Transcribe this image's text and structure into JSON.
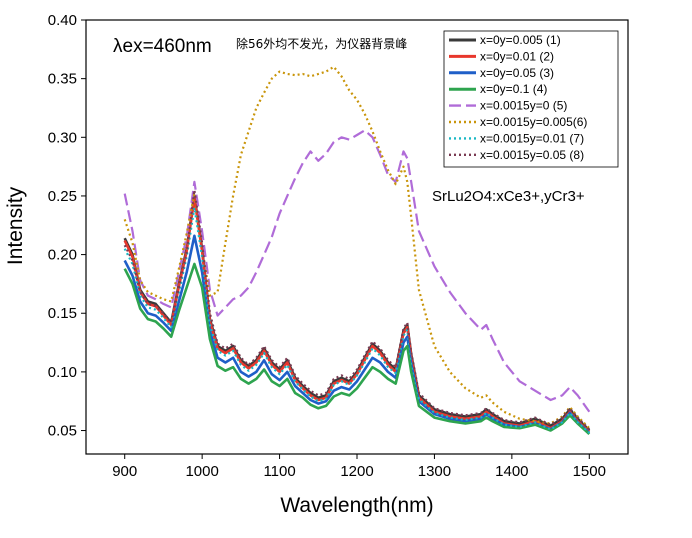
{
  "chart_data": {
    "type": "line",
    "xlabel": "Wavelength(nm)",
    "ylabel": "Intensity",
    "xlim": [
      850,
      1550
    ],
    "ylim": [
      0.03,
      0.4
    ],
    "xticks": [
      900,
      1000,
      1100,
      1200,
      1300,
      1400,
      1500
    ],
    "yticks": [
      0.05,
      0.1,
      0.15,
      0.2,
      0.25,
      0.3,
      0.35,
      0.4
    ],
    "ytick_labels": [
      "0.05",
      "0.10",
      "0.15",
      "0.20",
      "0.25",
      "0.30",
      "0.35",
      "0.40"
    ],
    "legend_position": "top-right",
    "annotations": {
      "excitation": "λex=460nm",
      "note": "除56外均不发光，为仪器背景峰",
      "sample": "SrLu2O4:xCe3+,yCr3+"
    },
    "x": [
      900,
      910,
      920,
      930,
      940,
      950,
      960,
      970,
      980,
      990,
      1000,
      1010,
      1020,
      1030,
      1040,
      1050,
      1060,
      1070,
      1080,
      1090,
      1100,
      1110,
      1120,
      1130,
      1140,
      1150,
      1160,
      1170,
      1180,
      1190,
      1200,
      1210,
      1220,
      1230,
      1240,
      1250,
      1260,
      1265,
      1270,
      1280,
      1300,
      1320,
      1340,
      1360,
      1367,
      1375,
      1390,
      1410,
      1430,
      1450,
      1465,
      1475,
      1485,
      1500
    ],
    "series": [
      {
        "name": "x=0y=0.005 (1)",
        "color": "#3a3a3a",
        "dash": "solid",
        "values": [
          0.214,
          0.2,
          0.17,
          0.16,
          0.158,
          0.15,
          0.142,
          0.175,
          0.205,
          0.25,
          0.205,
          0.145,
          0.122,
          0.118,
          0.122,
          0.11,
          0.105,
          0.11,
          0.12,
          0.108,
          0.102,
          0.11,
          0.095,
          0.088,
          0.082,
          0.078,
          0.08,
          0.092,
          0.095,
          0.092,
          0.1,
          0.112,
          0.124,
          0.118,
          0.108,
          0.102,
          0.135,
          0.14,
          0.115,
          0.08,
          0.068,
          0.064,
          0.062,
          0.064,
          0.068,
          0.064,
          0.058,
          0.056,
          0.06,
          0.054,
          0.06,
          0.068,
          0.06,
          0.05
        ]
      },
      {
        "name": "x=0y=0.01  (2)",
        "color": "#e8372c",
        "dash": "solid",
        "values": [
          0.212,
          0.198,
          0.168,
          0.158,
          0.156,
          0.148,
          0.14,
          0.173,
          0.203,
          0.248,
          0.203,
          0.143,
          0.12,
          0.116,
          0.12,
          0.108,
          0.103,
          0.108,
          0.118,
          0.106,
          0.1,
          0.108,
          0.093,
          0.086,
          0.08,
          0.076,
          0.078,
          0.09,
          0.093,
          0.09,
          0.098,
          0.11,
          0.122,
          0.116,
          0.106,
          0.1,
          0.133,
          0.138,
          0.113,
          0.078,
          0.066,
          0.062,
          0.06,
          0.062,
          0.066,
          0.062,
          0.056,
          0.054,
          0.058,
          0.052,
          0.058,
          0.066,
          0.058,
          0.049
        ]
      },
      {
        "name": "x=0y=0.05  (3)",
        "color": "#1f5fc8",
        "dash": "solid",
        "values": [
          0.195,
          0.182,
          0.16,
          0.15,
          0.148,
          0.142,
          0.135,
          0.16,
          0.185,
          0.216,
          0.185,
          0.135,
          0.112,
          0.108,
          0.112,
          0.1,
          0.096,
          0.1,
          0.11,
          0.098,
          0.093,
          0.1,
          0.088,
          0.082,
          0.076,
          0.073,
          0.075,
          0.084,
          0.087,
          0.085,
          0.092,
          0.102,
          0.112,
          0.108,
          0.1,
          0.095,
          0.125,
          0.13,
          0.107,
          0.075,
          0.064,
          0.06,
          0.058,
          0.06,
          0.064,
          0.06,
          0.055,
          0.053,
          0.056,
          0.051,
          0.057,
          0.065,
          0.057,
          0.048
        ]
      },
      {
        "name": "x=0y=0.1  (4)",
        "color": "#2ea44f",
        "dash": "solid",
        "values": [
          0.188,
          0.175,
          0.154,
          0.145,
          0.143,
          0.137,
          0.13,
          0.152,
          0.172,
          0.192,
          0.172,
          0.128,
          0.105,
          0.101,
          0.104,
          0.094,
          0.09,
          0.094,
          0.102,
          0.092,
          0.088,
          0.094,
          0.082,
          0.078,
          0.072,
          0.069,
          0.071,
          0.079,
          0.082,
          0.08,
          0.086,
          0.095,
          0.104,
          0.1,
          0.094,
          0.09,
          0.118,
          0.122,
          0.1,
          0.071,
          0.061,
          0.058,
          0.056,
          0.058,
          0.061,
          0.058,
          0.053,
          0.052,
          0.055,
          0.05,
          0.056,
          0.063,
          0.056,
          0.047
        ]
      },
      {
        "name": "x=0.0015y=0      (5)",
        "color": "#b06cd8",
        "dash": "12,5",
        "values": [
          0.252,
          0.22,
          0.178,
          0.165,
          0.162,
          0.158,
          0.155,
          0.185,
          0.215,
          0.262,
          0.22,
          0.17,
          0.148,
          0.155,
          0.162,
          0.165,
          0.172,
          0.185,
          0.2,
          0.215,
          0.235,
          0.25,
          0.265,
          0.278,
          0.288,
          0.28,
          0.286,
          0.296,
          0.3,
          0.298,
          0.302,
          0.306,
          0.3,
          0.285,
          0.268,
          0.262,
          0.288,
          0.282,
          0.262,
          0.22,
          0.19,
          0.168,
          0.15,
          0.136,
          0.14,
          0.128,
          0.108,
          0.092,
          0.084,
          0.076,
          0.08,
          0.087,
          0.08,
          0.066
        ]
      },
      {
        "name": "x=0.0015y=0.005(6)",
        "color": "#c9950a",
        "dash": "2,3",
        "values": [
          0.23,
          0.21,
          0.178,
          0.168,
          0.165,
          0.162,
          0.16,
          0.188,
          0.218,
          0.252,
          0.205,
          0.165,
          0.168,
          0.21,
          0.25,
          0.285,
          0.305,
          0.325,
          0.338,
          0.35,
          0.356,
          0.354,
          0.353,
          0.354,
          0.352,
          0.354,
          0.356,
          0.36,
          0.352,
          0.34,
          0.332,
          0.32,
          0.305,
          0.288,
          0.272,
          0.26,
          0.275,
          0.262,
          0.232,
          0.17,
          0.122,
          0.1,
          0.086,
          0.078,
          0.08,
          0.074,
          0.066,
          0.06,
          0.058,
          0.056,
          0.062,
          0.07,
          0.062,
          0.052
        ]
      },
      {
        "name": "x=0.0015y=0.01 (7)",
        "color": "#19b8c4",
        "dash": "2,3",
        "values": [
          0.205,
          0.192,
          0.165,
          0.155,
          0.153,
          0.146,
          0.138,
          0.168,
          0.198,
          0.24,
          0.198,
          0.14,
          0.118,
          0.114,
          0.118,
          0.106,
          0.101,
          0.106,
          0.116,
          0.104,
          0.098,
          0.106,
          0.092,
          0.085,
          0.079,
          0.075,
          0.077,
          0.089,
          0.092,
          0.089,
          0.097,
          0.108,
          0.12,
          0.114,
          0.104,
          0.099,
          0.131,
          0.136,
          0.111,
          0.077,
          0.065,
          0.061,
          0.059,
          0.061,
          0.065,
          0.061,
          0.055,
          0.053,
          0.057,
          0.051,
          0.057,
          0.065,
          0.057,
          0.048
        ]
      },
      {
        "name": "x=0.0015y=0.05 (8)",
        "color": "#7a3a52",
        "dash": "2,3",
        "values": [
          0.208,
          0.195,
          0.168,
          0.158,
          0.156,
          0.15,
          0.142,
          0.172,
          0.202,
          0.255,
          0.21,
          0.15,
          0.124,
          0.12,
          0.124,
          0.112,
          0.106,
          0.112,
          0.122,
          0.11,
          0.104,
          0.112,
          0.097,
          0.09,
          0.084,
          0.08,
          0.082,
          0.094,
          0.097,
          0.094,
          0.102,
          0.114,
          0.126,
          0.12,
          0.11,
          0.104,
          0.137,
          0.142,
          0.117,
          0.082,
          0.069,
          0.065,
          0.063,
          0.065,
          0.069,
          0.065,
          0.059,
          0.057,
          0.061,
          0.055,
          0.061,
          0.069,
          0.061,
          0.051
        ]
      }
    ]
  }
}
